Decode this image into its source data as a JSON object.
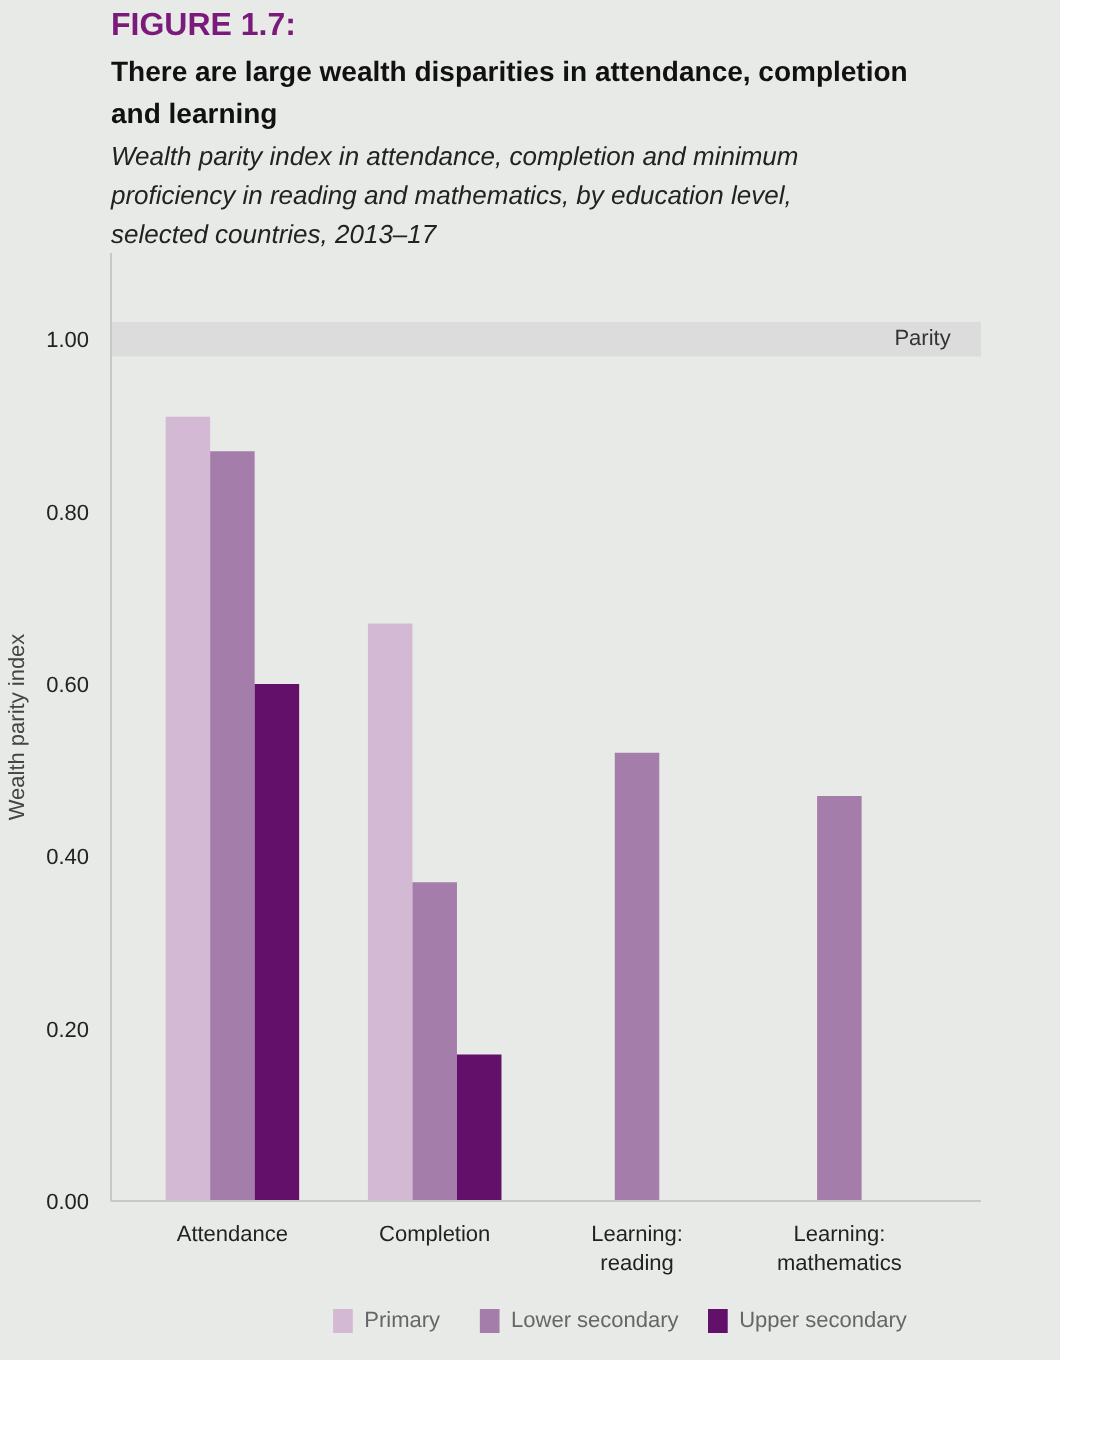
{
  "chart_data": {
    "type": "bar",
    "title": "FIGURE 1.7:",
    "subtitle": "There are large wealth disparities in attendance, completion and learning",
    "annotations": [
      "Wealth parity index in attendance, completion and minimum proficiency in reading and mathematics, by education level, selected countries, 2013–17"
    ],
    "ylabel": "Wealth parity index",
    "categories": [
      "Attendance",
      "Completion",
      "Learning: reading",
      "Learning: mathematics"
    ],
    "series": [
      {
        "name": "Primary",
        "color": "#d4b9d4",
        "values": [
          0.91,
          0.67,
          null,
          null
        ]
      },
      {
        "name": "Lower secondary",
        "color": "#a57daa",
        "values": [
          0.87,
          0.37,
          0.52,
          0.47
        ]
      },
      {
        "name": "Upper secondary",
        "color": "#63106b",
        "values": [
          0.6,
          0.17,
          null,
          null
        ]
      }
    ],
    "ylim": [
      0,
      1.1
    ],
    "yticks": [
      {
        "value": 0,
        "label": "0.00"
      },
      {
        "value": 0.2,
        "label": "0.20"
      },
      {
        "value": 0.4,
        "label": "0.40"
      },
      {
        "value": 0.6,
        "label": "0.60"
      },
      {
        "value": 0.8,
        "label": "0.80"
      },
      {
        "value": 1,
        "label": "1.00"
      }
    ],
    "bands": [
      {
        "axis": "y",
        "from": 0.98,
        "to": 1.02,
        "label": "Parity",
        "color": "#dcdcdc"
      }
    ],
    "legend": "bottom"
  }
}
